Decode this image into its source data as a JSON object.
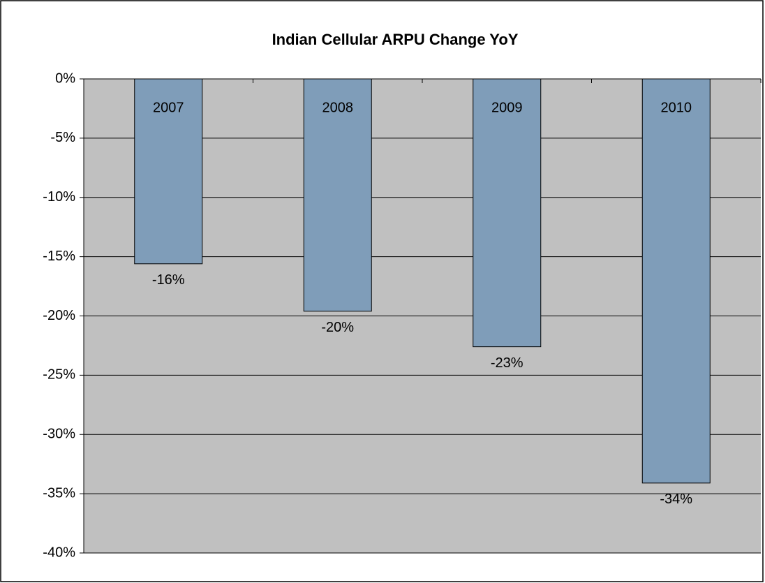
{
  "chart_data": {
    "type": "bar",
    "title": "Indian Cellular ARPU Change YoY",
    "categories": [
      "2007",
      "2008",
      "2009",
      "2010"
    ],
    "values": [
      -15.6,
      -19.6,
      -22.6,
      -34.1
    ],
    "value_labels": [
      "-16%",
      "-20%",
      "-23%",
      "-34%"
    ],
    "color": "#7f9db9",
    "ylim": [
      -40,
      0
    ],
    "yticks": [
      {
        "value": 0,
        "label": "0%"
      },
      {
        "value": -5,
        "label": "-5%"
      },
      {
        "value": -10,
        "label": "-10%"
      },
      {
        "value": -15,
        "label": "-15%"
      },
      {
        "value": -20,
        "label": "-20%"
      },
      {
        "value": -25,
        "label": "-25%"
      },
      {
        "value": -30,
        "label": "-30%"
      },
      {
        "value": -35,
        "label": "-35%"
      },
      {
        "value": -40,
        "label": "-40%"
      }
    ],
    "grid": true
  }
}
